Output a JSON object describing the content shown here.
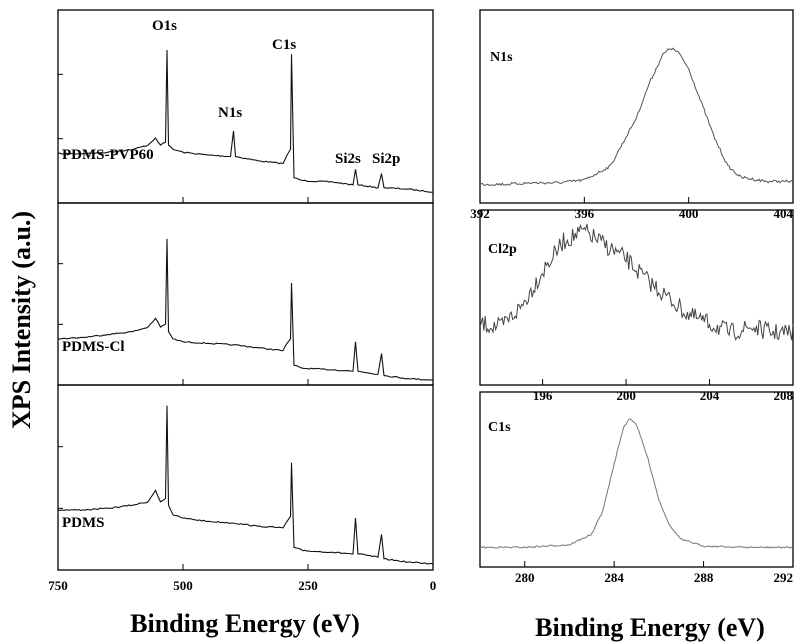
{
  "ylabel": "XPS Intensity (a.u.)",
  "xlabel_left": "Binding Energy (eV)",
  "xlabel_right": "Binding Energy (eV)",
  "colors": {
    "survey": "#111111",
    "n1s": "#555555",
    "cl2p": "#444444",
    "c1s": "#777777",
    "axis": "#000000"
  },
  "chart_data": [
    {
      "type": "line",
      "panel": "survey",
      "xlim": [
        750,
        0
      ],
      "xticks": [
        750,
        500,
        250,
        0
      ],
      "series": [
        {
          "name": "PDMS-PVP60",
          "peaks": [
            "O1s",
            "N1s",
            "C1s",
            "Si2s",
            "Si2p"
          ],
          "x": [
            750,
            700,
            650,
            600,
            570,
            555,
            545,
            535,
            532,
            529,
            520,
            500,
            450,
            405,
            399,
            395,
            350,
            300,
            292,
            285,
            283,
            278,
            260,
            200,
            160,
            155,
            150,
            110,
            103,
            98,
            50,
            0
          ],
          "y": [
            0.27,
            0.27,
            0.28,
            0.3,
            0.33,
            0.38,
            0.33,
            0.35,
            1.0,
            0.33,
            0.3,
            0.28,
            0.26,
            0.25,
            0.43,
            0.25,
            0.22,
            0.2,
            0.26,
            0.3,
            0.97,
            0.1,
            0.08,
            0.07,
            0.05,
            0.16,
            0.05,
            0.03,
            0.13,
            0.03,
            0.02,
            0.0
          ]
        },
        {
          "name": "PDMS-Cl",
          "x": [
            750,
            700,
            650,
            600,
            570,
            555,
            545,
            535,
            532,
            529,
            520,
            500,
            450,
            400,
            350,
            300,
            292,
            285,
            283,
            278,
            260,
            200,
            160,
            155,
            150,
            110,
            103,
            98,
            50,
            0
          ],
          "y": [
            0.3,
            0.31,
            0.33,
            0.35,
            0.38,
            0.44,
            0.38,
            0.4,
            0.98,
            0.35,
            0.3,
            0.28,
            0.27,
            0.26,
            0.24,
            0.22,
            0.27,
            0.3,
            0.68,
            0.12,
            0.1,
            0.09,
            0.08,
            0.28,
            0.08,
            0.06,
            0.2,
            0.05,
            0.03,
            0.02
          ]
        },
        {
          "name": "PDMS",
          "x": [
            750,
            700,
            650,
            600,
            570,
            555,
            545,
            535,
            532,
            529,
            520,
            500,
            450,
            400,
            350,
            300,
            292,
            285,
            283,
            278,
            260,
            200,
            160,
            155,
            150,
            110,
            103,
            98,
            50,
            0
          ],
          "y": [
            0.35,
            0.35,
            0.36,
            0.38,
            0.4,
            0.47,
            0.4,
            0.42,
            0.99,
            0.38,
            0.32,
            0.3,
            0.28,
            0.27,
            0.25,
            0.24,
            0.28,
            0.31,
            0.64,
            0.12,
            0.1,
            0.09,
            0.08,
            0.3,
            0.08,
            0.06,
            0.2,
            0.05,
            0.03,
            0.02
          ]
        }
      ]
    },
    {
      "type": "line",
      "panel": "N1s",
      "label": "N1s",
      "xlim": [
        392,
        404
      ],
      "xticks": [
        392,
        396,
        400,
        404
      ],
      "series": [
        {
          "x": [
            392,
            393,
            394,
            395,
            396,
            397,
            398,
            398.5,
            399,
            399.3,
            399.6,
            400,
            400.5,
            401,
            401.5,
            402,
            403,
            404
          ],
          "y": [
            0.02,
            0.02,
            0.03,
            0.03,
            0.05,
            0.15,
            0.5,
            0.75,
            0.95,
            1.0,
            0.97,
            0.85,
            0.6,
            0.35,
            0.15,
            0.07,
            0.04,
            0.04
          ]
        }
      ]
    },
    {
      "type": "line",
      "panel": "Cl2p",
      "label": "Cl2p",
      "xlim": [
        193,
        208
      ],
      "xticks": [
        196,
        200,
        204,
        208
      ],
      "series": [
        {
          "x": [
            193,
            194,
            195,
            196,
            197,
            198,
            199,
            200,
            201,
            202,
            203,
            204,
            205,
            206,
            207,
            208
          ],
          "y": [
            0.35,
            0.33,
            0.45,
            0.65,
            0.82,
            0.88,
            0.8,
            0.72,
            0.6,
            0.5,
            0.4,
            0.35,
            0.3,
            0.33,
            0.3,
            0.3
          ]
        }
      ]
    },
    {
      "type": "line",
      "panel": "C1s",
      "label": "C1s",
      "xlim": [
        278,
        292
      ],
      "xticks": [
        280,
        284,
        288,
        292
      ],
      "series": [
        {
          "x": [
            278,
            280,
            282,
            283,
            283.5,
            284,
            284.4,
            284.7,
            285,
            285.5,
            286,
            286.5,
            287,
            288,
            290,
            292
          ],
          "y": [
            0.02,
            0.02,
            0.04,
            0.12,
            0.3,
            0.65,
            0.92,
            1.0,
            0.95,
            0.7,
            0.38,
            0.18,
            0.08,
            0.03,
            0.02,
            0.02
          ]
        }
      ]
    }
  ]
}
